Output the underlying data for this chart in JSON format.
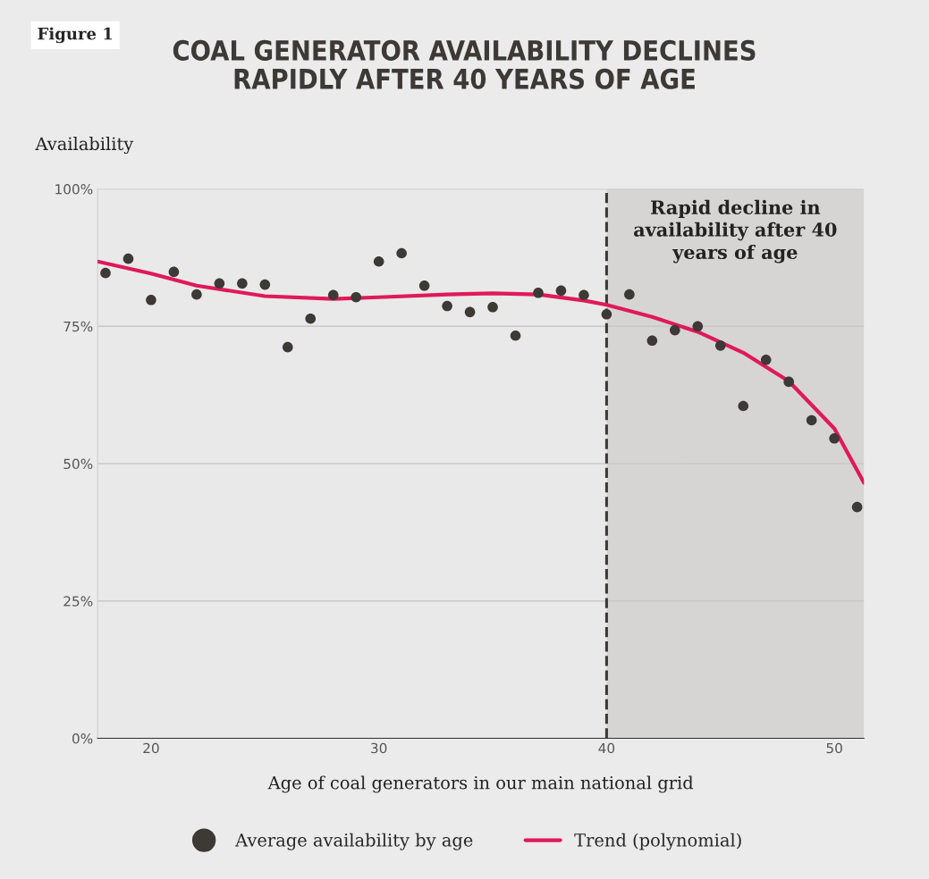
{
  "chart_data": {
    "type": "scatter",
    "title": "COAL GENERATOR AVAILABILITY DECLINES\nRAPIDLY AFTER 40 YEARS OF AGE",
    "ylabel": "Availability",
    "xlabel": "Age of coal generators in our main national grid",
    "annotations": [
      "Figure 1"
    ],
    "xlim": [
      17.65,
      51.3
    ],
    "xticks": [
      20,
      30,
      40,
      50
    ],
    "ylim": [
      0,
      100
    ],
    "yticks": [
      {
        "value": 0,
        "label": "0%"
      },
      {
        "value": 25,
        "label": "25%"
      },
      {
        "value": 50,
        "label": "50%"
      },
      {
        "value": 75,
        "label": "75%"
      },
      {
        "value": 100,
        "label": "100%"
      }
    ],
    "grid": "y",
    "legend": "bottom",
    "ref_lines": [
      {
        "axis": "x",
        "value": 40,
        "line_style": "dashed",
        "color": "#3d3935"
      }
    ],
    "bands": [
      {
        "axis": "x",
        "from": 40,
        "to": 51.3,
        "color": "#d6d5d4",
        "label": "Rapid decline in\navailability after 40\nyears of age"
      }
    ],
    "series": [
      {
        "name": "Average availability by age",
        "marker": "circle",
        "color": "#3d3935",
        "x": [
          18,
          19,
          20,
          21,
          22,
          23,
          24,
          25,
          26,
          27,
          28,
          29,
          30,
          31,
          32,
          33,
          34,
          35,
          36,
          37,
          38,
          39,
          40,
          41,
          42,
          43,
          44,
          45,
          46,
          47,
          48,
          49,
          50,
          51
        ],
        "values": [
          84.7,
          87.3,
          79.8,
          84.9,
          80.8,
          82.8,
          82.8,
          82.6,
          71.2,
          76.4,
          80.7,
          80.3,
          86.8,
          88.3,
          82.4,
          78.7,
          77.6,
          78.5,
          73.3,
          81.1,
          81.5,
          80.7,
          77.2,
          80.8,
          72.4,
          74.3,
          75.0,
          71.5,
          60.5,
          68.9,
          64.9,
          57.9,
          54.6,
          42.1
        ]
      },
      {
        "name": "Trend (polynomial)",
        "type": "line",
        "marker": "none",
        "color": "#e0195a",
        "line_style": "solid",
        "x": [
          17.65,
          20,
          22,
          25,
          28,
          30,
          33,
          35,
          37,
          39,
          40,
          42,
          44,
          46,
          48,
          50,
          51.3
        ],
        "values": [
          86.8,
          84.6,
          82.4,
          80.5,
          80.0,
          80.3,
          80.8,
          81.0,
          80.8,
          79.7,
          78.9,
          76.7,
          74.0,
          70.2,
          65.0,
          56.4,
          46.5
        ]
      }
    ]
  }
}
